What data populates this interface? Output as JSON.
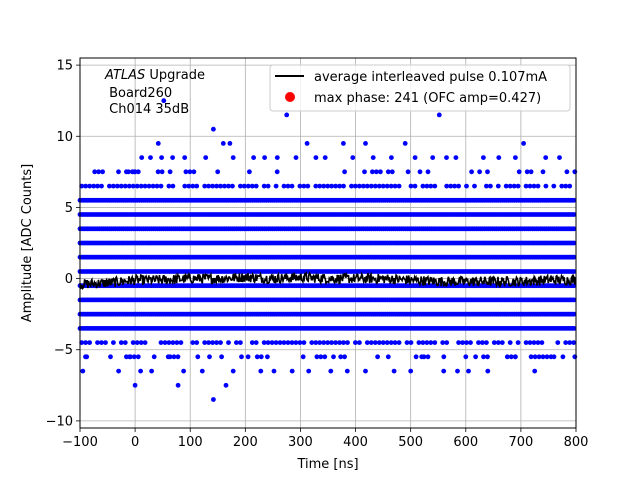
{
  "chart_data": {
    "type": "scatter",
    "xlabel": "Time [ns]",
    "ylabel": "Amplitude [ADC Counts]",
    "xlim": [
      -100,
      800
    ],
    "ylim": [
      -10.5,
      15.5
    ],
    "x_ticks": [
      -100,
      0,
      100,
      200,
      300,
      400,
      500,
      600,
      700,
      800
    ],
    "y_ticks": [
      -10,
      -5,
      0,
      5,
      10,
      15
    ],
    "x_tick_labels": [
      "−100",
      "0",
      "100",
      "200",
      "300",
      "400",
      "500",
      "600",
      "700",
      "800"
    ],
    "y_tick_labels": [
      "−10",
      "−5",
      "0",
      "5",
      "10",
      "15"
    ],
    "grid": true,
    "legend_position": "top-right",
    "annotation": {
      "italic": "ATLAS",
      "rest": " Upgrade",
      "line2": " Board260",
      "line3": " Ch014 35dB"
    },
    "colors": {
      "samples": "#0000ff",
      "average": "#000000",
      "max_phase": "#ff0000",
      "grid": "#b0b0b0"
    },
    "series": [
      {
        "name": "average interleaved pulse 0.107mA",
        "kind": "line",
        "x_range": [
          -100,
          800
        ],
        "y_mean": -0.1,
        "y_jitter": 0.35,
        "samples": [
          [
            -100,
            -0.4
          ],
          [
            -50,
            -0.3
          ],
          [
            0,
            -0.1
          ],
          [
            50,
            -0.1
          ],
          [
            100,
            0.0
          ],
          [
            150,
            0.0
          ],
          [
            200,
            0.1
          ],
          [
            250,
            0.0
          ],
          [
            300,
            0.1
          ],
          [
            350,
            0.0
          ],
          [
            400,
            0.0
          ],
          [
            450,
            0.0
          ],
          [
            500,
            -0.1
          ],
          [
            550,
            -0.2
          ],
          [
            600,
            -0.2
          ],
          [
            650,
            -0.2
          ],
          [
            700,
            -0.2
          ],
          [
            750,
            -0.1
          ],
          [
            800,
            -0.1
          ]
        ]
      },
      {
        "name": "max phase: 241 (OFC amp=0.427)",
        "kind": "point",
        "points": []
      },
      {
        "name": "samples",
        "kind": "scatter",
        "dense_levels": [
          -3.5,
          -2.5,
          -1.5,
          -0.5,
          0.5,
          1.5,
          2.5,
          3.5,
          4.5,
          5.5
        ],
        "medium_levels": [
          -4.5,
          6.5
        ],
        "sparse_levels": [
          -5.5,
          7.5
        ],
        "outliers": [
          [
            -12,
            7.5
          ],
          [
            -5,
            7.5
          ],
          [
            0,
            7.5
          ],
          [
            12,
            8.5
          ],
          [
            28,
            8.5
          ],
          [
            42,
            9.5
          ],
          [
            48,
            8.5
          ],
          [
            52,
            12.5
          ],
          [
            68,
            8.5
          ],
          [
            90,
            8.5
          ],
          [
            128,
            8.5
          ],
          [
            142,
            10.5
          ],
          [
            160,
            9.5
          ],
          [
            172,
            9.5
          ],
          [
            178,
            8.5
          ],
          [
            215,
            8.5
          ],
          [
            235,
            8.5
          ],
          [
            258,
            8.5
          ],
          [
            275,
            11.5
          ],
          [
            292,
            8.5
          ],
          [
            312,
            9.5
          ],
          [
            328,
            8.5
          ],
          [
            345,
            8.5
          ],
          [
            378,
            9.5
          ],
          [
            395,
            8.5
          ],
          [
            418,
            9.5
          ],
          [
            432,
            8.5
          ],
          [
            465,
            8.5
          ],
          [
            490,
            9.5
          ],
          [
            508,
            8.5
          ],
          [
            540,
            8.5
          ],
          [
            552,
            11.5
          ],
          [
            565,
            8.5
          ],
          [
            582,
            8.5
          ],
          [
            632,
            8.5
          ],
          [
            660,
            8.5
          ],
          [
            690,
            8.5
          ],
          [
            705,
            9.5
          ],
          [
            745,
            8.5
          ],
          [
            770,
            8.5
          ],
          [
            -95,
            -6.5
          ],
          [
            -30,
            -6.5
          ],
          [
            0,
            -7.5
          ],
          [
            10,
            -6.5
          ],
          [
            30,
            -6.5
          ],
          [
            78,
            -7.5
          ],
          [
            88,
            -6.5
          ],
          [
            122,
            -6.5
          ],
          [
            142,
            -8.5
          ],
          [
            165,
            -7.5
          ],
          [
            178,
            -6.5
          ],
          [
            228,
            -6.5
          ],
          [
            252,
            -6.5
          ],
          [
            285,
            -6.5
          ],
          [
            315,
            -6.5
          ],
          [
            355,
            -6.5
          ],
          [
            385,
            -6.5
          ],
          [
            418,
            -6.5
          ],
          [
            470,
            -6.5
          ],
          [
            500,
            -6.5
          ],
          [
            560,
            -6.5
          ],
          [
            585,
            -6.5
          ],
          [
            605,
            -6.5
          ],
          [
            640,
            -6.5
          ],
          [
            725,
            -6.5
          ],
          [
            -90,
            -5.5
          ],
          [
            -10,
            -5.5
          ],
          [
            60,
            -5.5
          ],
          [
            135,
            -5.5
          ],
          [
            205,
            -5.5
          ],
          [
            240,
            -5.5
          ],
          [
            305,
            -5.5
          ],
          [
            360,
            -5.5
          ],
          [
            440,
            -5.5
          ],
          [
            520,
            -5.5
          ],
          [
            600,
            -5.5
          ],
          [
            690,
            -5.5
          ],
          [
            760,
            -5.5
          ]
        ]
      }
    ]
  }
}
